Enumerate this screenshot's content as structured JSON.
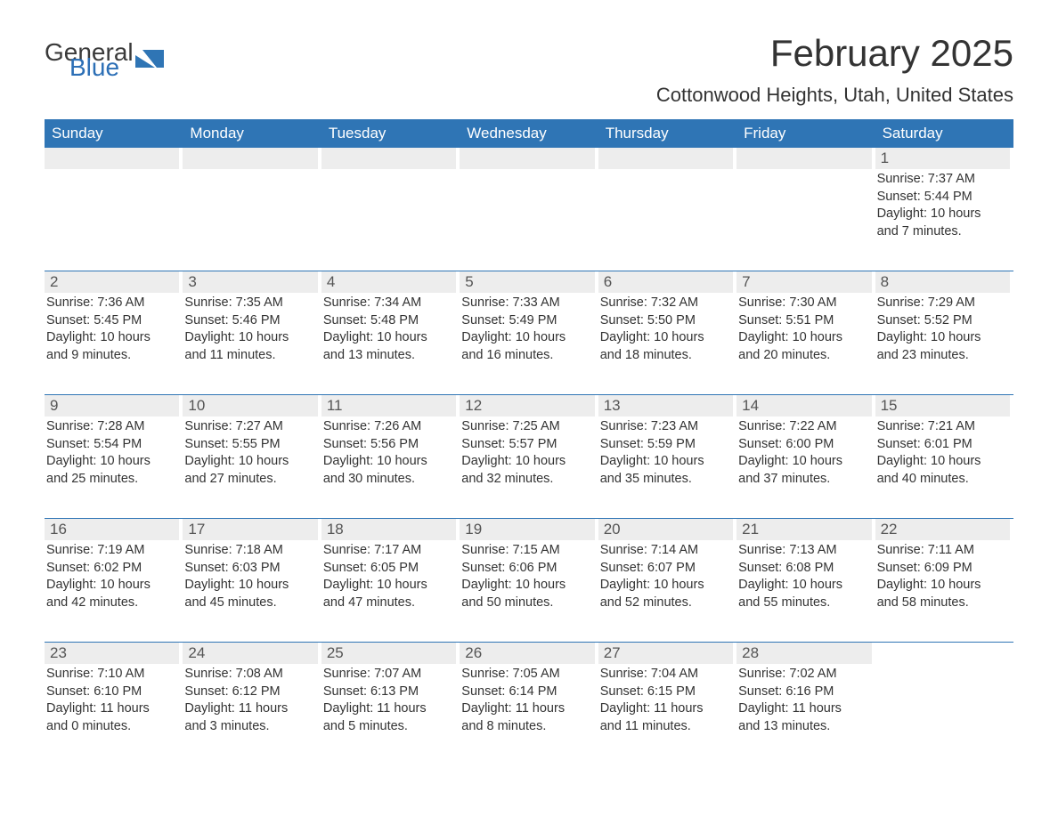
{
  "logo": {
    "word1": "General",
    "word2": "Blue",
    "icon_color": "#2f75b5"
  },
  "title": "February 2025",
  "subtitle": "Cottonwood Heights, Utah, United States",
  "colors": {
    "header_bg": "#2f75b5",
    "header_fg": "#ffffff",
    "daynum_bg": "#ededed",
    "text": "#333333"
  },
  "days_of_week": [
    "Sunday",
    "Monday",
    "Tuesday",
    "Wednesday",
    "Thursday",
    "Friday",
    "Saturday"
  ],
  "weeks": [
    [
      null,
      null,
      null,
      null,
      null,
      null,
      {
        "n": "1",
        "sunrise": "Sunrise: 7:37 AM",
        "sunset": "Sunset: 5:44 PM",
        "day1": "Daylight: 10 hours",
        "day2": "and 7 minutes."
      }
    ],
    [
      {
        "n": "2",
        "sunrise": "Sunrise: 7:36 AM",
        "sunset": "Sunset: 5:45 PM",
        "day1": "Daylight: 10 hours",
        "day2": "and 9 minutes."
      },
      {
        "n": "3",
        "sunrise": "Sunrise: 7:35 AM",
        "sunset": "Sunset: 5:46 PM",
        "day1": "Daylight: 10 hours",
        "day2": "and 11 minutes."
      },
      {
        "n": "4",
        "sunrise": "Sunrise: 7:34 AM",
        "sunset": "Sunset: 5:48 PM",
        "day1": "Daylight: 10 hours",
        "day2": "and 13 minutes."
      },
      {
        "n": "5",
        "sunrise": "Sunrise: 7:33 AM",
        "sunset": "Sunset: 5:49 PM",
        "day1": "Daylight: 10 hours",
        "day2": "and 16 minutes."
      },
      {
        "n": "6",
        "sunrise": "Sunrise: 7:32 AM",
        "sunset": "Sunset: 5:50 PM",
        "day1": "Daylight: 10 hours",
        "day2": "and 18 minutes."
      },
      {
        "n": "7",
        "sunrise": "Sunrise: 7:30 AM",
        "sunset": "Sunset: 5:51 PM",
        "day1": "Daylight: 10 hours",
        "day2": "and 20 minutes."
      },
      {
        "n": "8",
        "sunrise": "Sunrise: 7:29 AM",
        "sunset": "Sunset: 5:52 PM",
        "day1": "Daylight: 10 hours",
        "day2": "and 23 minutes."
      }
    ],
    [
      {
        "n": "9",
        "sunrise": "Sunrise: 7:28 AM",
        "sunset": "Sunset: 5:54 PM",
        "day1": "Daylight: 10 hours",
        "day2": "and 25 minutes."
      },
      {
        "n": "10",
        "sunrise": "Sunrise: 7:27 AM",
        "sunset": "Sunset: 5:55 PM",
        "day1": "Daylight: 10 hours",
        "day2": "and 27 minutes."
      },
      {
        "n": "11",
        "sunrise": "Sunrise: 7:26 AM",
        "sunset": "Sunset: 5:56 PM",
        "day1": "Daylight: 10 hours",
        "day2": "and 30 minutes."
      },
      {
        "n": "12",
        "sunrise": "Sunrise: 7:25 AM",
        "sunset": "Sunset: 5:57 PM",
        "day1": "Daylight: 10 hours",
        "day2": "and 32 minutes."
      },
      {
        "n": "13",
        "sunrise": "Sunrise: 7:23 AM",
        "sunset": "Sunset: 5:59 PM",
        "day1": "Daylight: 10 hours",
        "day2": "and 35 minutes."
      },
      {
        "n": "14",
        "sunrise": "Sunrise: 7:22 AM",
        "sunset": "Sunset: 6:00 PM",
        "day1": "Daylight: 10 hours",
        "day2": "and 37 minutes."
      },
      {
        "n": "15",
        "sunrise": "Sunrise: 7:21 AM",
        "sunset": "Sunset: 6:01 PM",
        "day1": "Daylight: 10 hours",
        "day2": "and 40 minutes."
      }
    ],
    [
      {
        "n": "16",
        "sunrise": "Sunrise: 7:19 AM",
        "sunset": "Sunset: 6:02 PM",
        "day1": "Daylight: 10 hours",
        "day2": "and 42 minutes."
      },
      {
        "n": "17",
        "sunrise": "Sunrise: 7:18 AM",
        "sunset": "Sunset: 6:03 PM",
        "day1": "Daylight: 10 hours",
        "day2": "and 45 minutes."
      },
      {
        "n": "18",
        "sunrise": "Sunrise: 7:17 AM",
        "sunset": "Sunset: 6:05 PM",
        "day1": "Daylight: 10 hours",
        "day2": "and 47 minutes."
      },
      {
        "n": "19",
        "sunrise": "Sunrise: 7:15 AM",
        "sunset": "Sunset: 6:06 PM",
        "day1": "Daylight: 10 hours",
        "day2": "and 50 minutes."
      },
      {
        "n": "20",
        "sunrise": "Sunrise: 7:14 AM",
        "sunset": "Sunset: 6:07 PM",
        "day1": "Daylight: 10 hours",
        "day2": "and 52 minutes."
      },
      {
        "n": "21",
        "sunrise": "Sunrise: 7:13 AM",
        "sunset": "Sunset: 6:08 PM",
        "day1": "Daylight: 10 hours",
        "day2": "and 55 minutes."
      },
      {
        "n": "22",
        "sunrise": "Sunrise: 7:11 AM",
        "sunset": "Sunset: 6:09 PM",
        "day1": "Daylight: 10 hours",
        "day2": "and 58 minutes."
      }
    ],
    [
      {
        "n": "23",
        "sunrise": "Sunrise: 7:10 AM",
        "sunset": "Sunset: 6:10 PM",
        "day1": "Daylight: 11 hours",
        "day2": "and 0 minutes."
      },
      {
        "n": "24",
        "sunrise": "Sunrise: 7:08 AM",
        "sunset": "Sunset: 6:12 PM",
        "day1": "Daylight: 11 hours",
        "day2": "and 3 minutes."
      },
      {
        "n": "25",
        "sunrise": "Sunrise: 7:07 AM",
        "sunset": "Sunset: 6:13 PM",
        "day1": "Daylight: 11 hours",
        "day2": "and 5 minutes."
      },
      {
        "n": "26",
        "sunrise": "Sunrise: 7:05 AM",
        "sunset": "Sunset: 6:14 PM",
        "day1": "Daylight: 11 hours",
        "day2": "and 8 minutes."
      },
      {
        "n": "27",
        "sunrise": "Sunrise: 7:04 AM",
        "sunset": "Sunset: 6:15 PM",
        "day1": "Daylight: 11 hours",
        "day2": "and 11 minutes."
      },
      {
        "n": "28",
        "sunrise": "Sunrise: 7:02 AM",
        "sunset": "Sunset: 6:16 PM",
        "day1": "Daylight: 11 hours",
        "day2": "and 13 minutes."
      },
      null
    ]
  ]
}
